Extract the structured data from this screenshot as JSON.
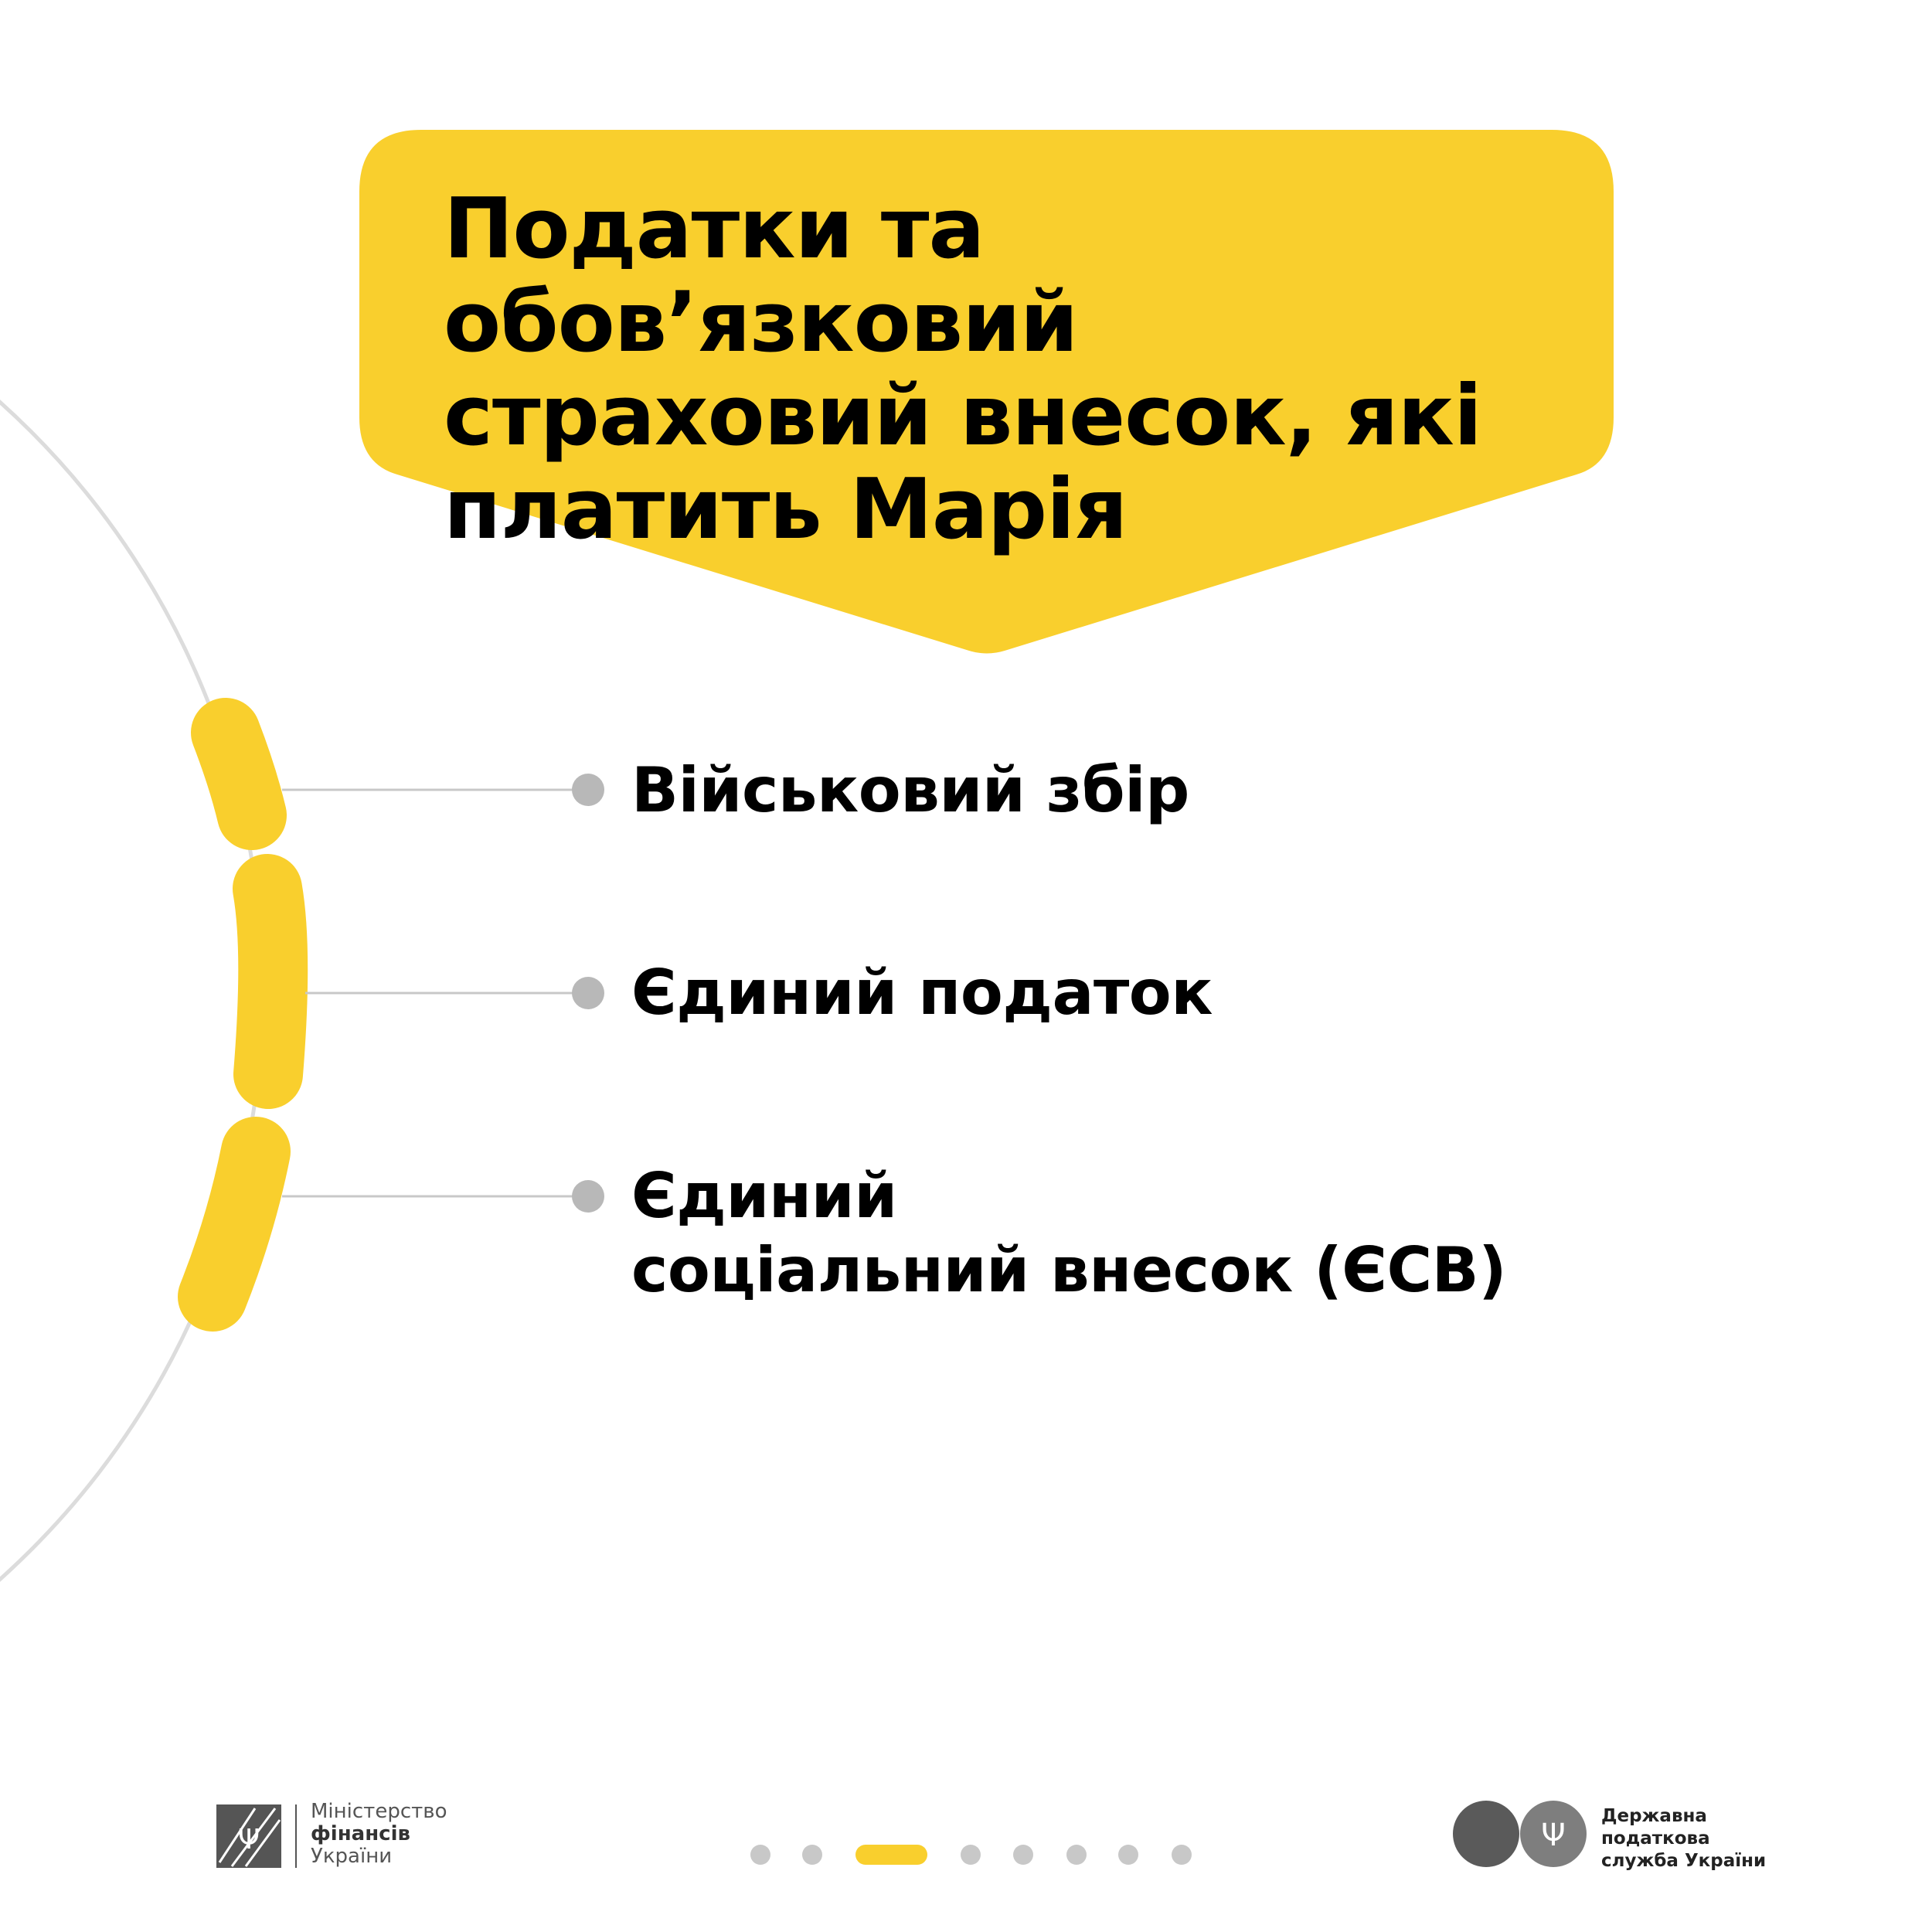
{
  "title": "Податки та обов’язковий страховий внесок, які платить Марія",
  "items": [
    {
      "label": "Військовий збір"
    },
    {
      "label": "Єдиний податок"
    },
    {
      "label_line1": "Єдиний",
      "label_line2": "соціальний внесок (ЄСВ)"
    }
  ],
  "footer": {
    "ministry": {
      "line1": "Міністерство",
      "line2": "фінансів",
      "line3": "України"
    },
    "tax_service": {
      "line1": "Державна",
      "line2": "податкова",
      "line3": "служба України"
    },
    "pagination": {
      "total": 8,
      "current": 3
    }
  },
  "colors": {
    "accent": "#F9CF2D",
    "gray": "#B8B8B8",
    "arc": "#DCDCDC"
  }
}
